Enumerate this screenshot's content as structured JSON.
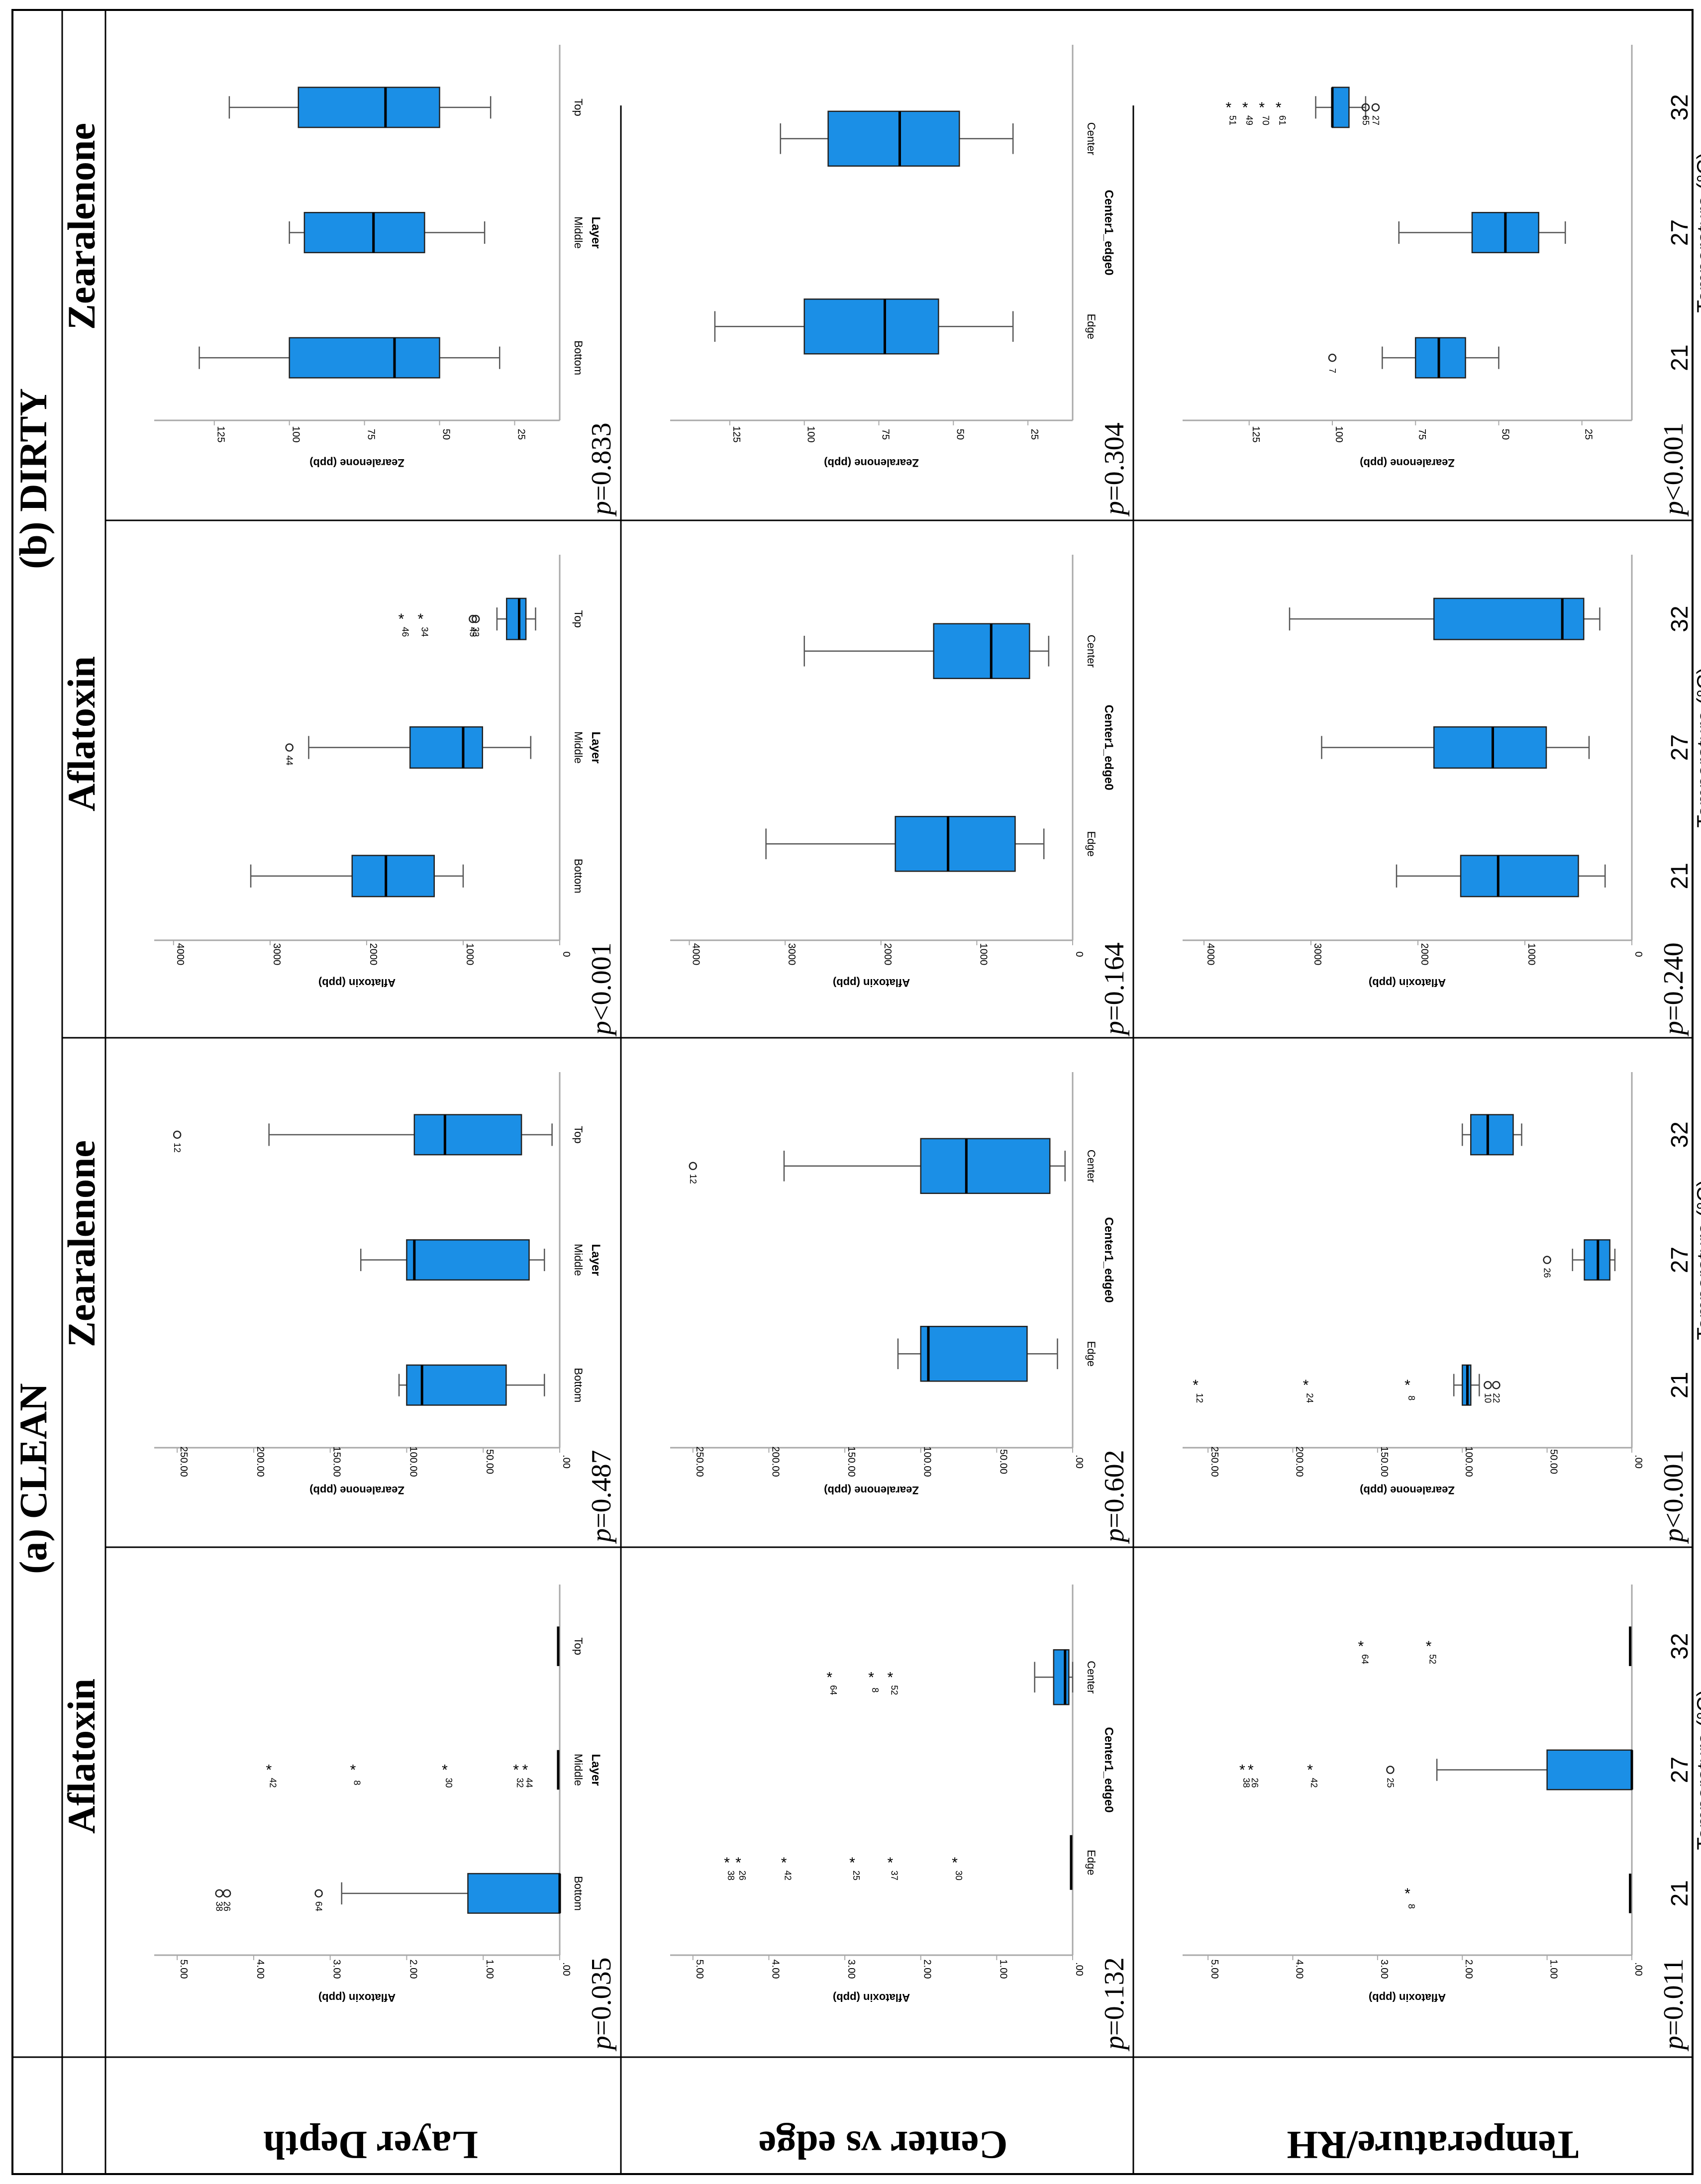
{
  "figure": {
    "group_a": "(a) CLEAN",
    "group_b": "(b) DIRTY",
    "col_headers": [
      "Aflatoxin",
      "Zearalenone",
      "Aflatoxin",
      "Zearalenone"
    ],
    "row_labels": [
      "Layer Depth",
      "Center vs edge",
      "Temperature/RH"
    ]
  },
  "colors": {
    "box_fill": "#1b8fe6",
    "line": "#000000",
    "whisker": "#555555",
    "frame": "#a9a9a9"
  },
  "chart_data": [
    {
      "type": "box",
      "id": "r0c0",
      "title": "Aflatoxin",
      "group": "CLEAN",
      "ylabel": "Aflatoxin (ppb)",
      "xlabel": "Layer",
      "categories": [
        "Bottom",
        "Middle",
        "Top"
      ],
      "ylim": [
        0,
        5.3
      ],
      "yticks": [
        0,
        1,
        2,
        3,
        4,
        5
      ],
      "tick_labels": [
        ".00",
        "1.00",
        "2.00",
        "3.00",
        "4.00",
        "5.00"
      ],
      "boxes": [
        {
          "min": 0,
          "q1": 0,
          "median": 0,
          "q3": 1.2,
          "max": 2.85
        },
        {
          "min": 0.02,
          "q1": 0.02,
          "median": 0.02,
          "q3": 0.02,
          "max": 0.02
        },
        {
          "min": 0.02,
          "q1": 0.02,
          "median": 0.02,
          "q3": 0.02,
          "max": 0.02
        }
      ],
      "outliers": [
        {
          "cat": 0,
          "v": 4.45,
          "sym": "o",
          "label": "38"
        },
        {
          "cat": 0,
          "v": 4.35,
          "sym": "o",
          "label": "26"
        },
        {
          "cat": 0,
          "v": 3.15,
          "sym": "o",
          "label": "64"
        },
        {
          "cat": 1,
          "v": 3.75,
          "sym": "*",
          "label": "42"
        },
        {
          "cat": 1,
          "v": 2.65,
          "sym": "*",
          "label": "8"
        },
        {
          "cat": 1,
          "v": 1.45,
          "sym": "*",
          "label": "30"
        },
        {
          "cat": 1,
          "v": 0.52,
          "sym": "*",
          "label": "32"
        },
        {
          "cat": 1,
          "v": 0.4,
          "sym": "*",
          "label": "44"
        }
      ],
      "p_value": "p=0.035"
    },
    {
      "type": "box",
      "id": "r0c1",
      "title": "Zearalenone",
      "group": "CLEAN",
      "ylabel": "Zearalenone (ppb)",
      "xlabel": "Layer",
      "categories": [
        "Bottom",
        "Middle",
        "Top"
      ],
      "ylim": [
        0,
        265
      ],
      "yticks": [
        0,
        50,
        100,
        150,
        200,
        250
      ],
      "tick_labels": [
        ".00",
        "50.00",
        "100.00",
        "150.00",
        "200.00",
        "250.00"
      ],
      "boxes": [
        {
          "min": 10,
          "q1": 35,
          "median": 90,
          "q3": 100,
          "max": 105
        },
        {
          "min": 10,
          "q1": 20,
          "median": 95,
          "q3": 100,
          "max": 130
        },
        {
          "min": 5,
          "q1": 25,
          "median": 75,
          "q3": 95,
          "max": 190
        }
      ],
      "outliers": [
        {
          "cat": 2,
          "v": 250,
          "sym": "o",
          "label": "12"
        }
      ],
      "p_value": "p=0.487"
    },
    {
      "type": "box",
      "id": "r0c2",
      "title": "Aflatoxin",
      "group": "DIRTY",
      "ylabel": "Aflatoxin (ppb)",
      "xlabel": "Layer",
      "categories": [
        "Bottom",
        "Middle",
        "Top"
      ],
      "ylim": [
        0,
        4200
      ],
      "yticks": [
        0,
        1000,
        2000,
        3000,
        4000
      ],
      "tick_labels": [
        "0",
        "1000",
        "2000",
        "3000",
        "4000"
      ],
      "boxes": [
        {
          "min": 1000,
          "q1": 1300,
          "median": 1800,
          "q3": 2150,
          "max": 3200
        },
        {
          "min": 300,
          "q1": 800,
          "median": 1000,
          "q3": 1550,
          "max": 2600
        },
        {
          "min": 250,
          "q1": 350,
          "median": 420,
          "q3": 550,
          "max": 650
        }
      ],
      "outliers": [
        {
          "cat": 1,
          "v": 2800,
          "sym": "o",
          "label": "44"
        },
        {
          "cat": 2,
          "v": 1600,
          "sym": "*",
          "label": "46"
        },
        {
          "cat": 2,
          "v": 1400,
          "sym": "*",
          "label": "34"
        },
        {
          "cat": 2,
          "v": 900,
          "sym": "o",
          "label": "45"
        },
        {
          "cat": 2,
          "v": 870,
          "sym": "o",
          "label": "33"
        }
      ],
      "p_value": "p<0.001"
    },
    {
      "type": "box",
      "id": "r0c3",
      "title": "Zearalenone",
      "group": "DIRTY",
      "ylabel": "Zearalenone (ppb)",
      "xlabel": "Layer",
      "categories": [
        "Bottom",
        "Middle",
        "Top"
      ],
      "ylim": [
        10,
        145
      ],
      "yticks": [
        25,
        50,
        75,
        100,
        125
      ],
      "tick_labels": [
        "25",
        "50",
        "75",
        "100",
        "125"
      ],
      "boxes": [
        {
          "min": 30,
          "q1": 50,
          "median": 65,
          "q3": 100,
          "max": 130
        },
        {
          "min": 35,
          "q1": 55,
          "median": 72,
          "q3": 95,
          "max": 100
        },
        {
          "min": 33,
          "q1": 50,
          "median": 68,
          "q3": 97,
          "max": 120
        }
      ],
      "outliers": [],
      "p_value": "p=0.833"
    },
    {
      "type": "box",
      "id": "r1c0",
      "title": "Aflatoxin",
      "group": "CLEAN",
      "ylabel": "Aflatoxin (ppb)",
      "xlabel": "Center1_edge0",
      "categories": [
        "Edge",
        "Center"
      ],
      "ylim": [
        0,
        5.3
      ],
      "yticks": [
        0,
        1,
        2,
        3,
        4,
        5
      ],
      "tick_labels": [
        ".00",
        "1.00",
        "2.00",
        "3.00",
        "4.00",
        "5.00"
      ],
      "boxes": [
        {
          "min": 0.02,
          "q1": 0.02,
          "median": 0.02,
          "q3": 0.02,
          "max": 0.02
        },
        {
          "min": 0,
          "q1": 0.05,
          "median": 0.1,
          "q3": 0.25,
          "max": 0.5
        }
      ],
      "outliers": [
        {
          "cat": 0,
          "v": 4.5,
          "sym": "*",
          "label": "38"
        },
        {
          "cat": 0,
          "v": 4.35,
          "sym": "*",
          "label": "26"
        },
        {
          "cat": 0,
          "v": 3.75,
          "sym": "*",
          "label": "42"
        },
        {
          "cat": 0,
          "v": 2.85,
          "sym": "*",
          "label": "25"
        },
        {
          "cat": 0,
          "v": 2.35,
          "sym": "*",
          "label": "37"
        },
        {
          "cat": 0,
          "v": 1.5,
          "sym": "*",
          "label": "30"
        },
        {
          "cat": 1,
          "v": 3.15,
          "sym": "*",
          "label": "64"
        },
        {
          "cat": 1,
          "v": 2.6,
          "sym": "*",
          "label": "8"
        },
        {
          "cat": 1,
          "v": 2.35,
          "sym": "*",
          "label": "52"
        }
      ],
      "p_value": "p=0.132"
    },
    {
      "type": "box",
      "id": "r1c1",
      "title": "Zearalenone",
      "group": "CLEAN",
      "ylabel": "Zearalenone (ppb)",
      "xlabel": "Center1_edge0",
      "categories": [
        "Edge",
        "Center"
      ],
      "ylim": [
        0,
        265
      ],
      "yticks": [
        0,
        50,
        100,
        150,
        200,
        250
      ],
      "tick_labels": [
        ".00",
        "50.00",
        "100.00",
        "150.00",
        "200.00",
        "250.00"
      ],
      "boxes": [
        {
          "min": 10,
          "q1": 30,
          "median": 95,
          "q3": 100,
          "max": 115
        },
        {
          "min": 5,
          "q1": 15,
          "median": 70,
          "q3": 100,
          "max": 190
        }
      ],
      "outliers": [
        {
          "cat": 1,
          "v": 250,
          "sym": "o",
          "label": "12"
        }
      ],
      "p_value": "p=0.602"
    },
    {
      "type": "box",
      "id": "r1c2",
      "title": "Aflatoxin",
      "group": "DIRTY",
      "ylabel": "Aflatoxin (ppb)",
      "xlabel": "Center1_edge0",
      "categories": [
        "Edge",
        "Center"
      ],
      "ylim": [
        0,
        4200
      ],
      "yticks": [
        0,
        1000,
        2000,
        3000,
        4000
      ],
      "tick_labels": [
        "0",
        "1000",
        "2000",
        "3000",
        "4000"
      ],
      "boxes": [
        {
          "min": 300,
          "q1": 600,
          "median": 1300,
          "q3": 1850,
          "max": 3200
        },
        {
          "min": 250,
          "q1": 450,
          "median": 850,
          "q3": 1450,
          "max": 2800
        }
      ],
      "outliers": [],
      "p_value": "p=0.164"
    },
    {
      "type": "box",
      "id": "r1c3",
      "title": "Zearalenone",
      "group": "DIRTY",
      "ylabel": "Zearalenone (ppb)",
      "xlabel": "Center1_edge0",
      "categories": [
        "Edge",
        "Center"
      ],
      "ylim": [
        10,
        145
      ],
      "yticks": [
        25,
        50,
        75,
        100,
        125
      ],
      "tick_labels": [
        "25",
        "50",
        "75",
        "100",
        "125"
      ],
      "boxes": [
        {
          "min": 30,
          "q1": 55,
          "median": 73,
          "q3": 100,
          "max": 130
        },
        {
          "min": 30,
          "q1": 48,
          "median": 68,
          "q3": 92,
          "max": 108
        }
      ],
      "outliers": [],
      "p_value": "p=0.304"
    },
    {
      "type": "box",
      "id": "r2c0",
      "title": "Aflatoxin",
      "group": "CLEAN",
      "ylabel": "Aflatoxin (ppb)",
      "xlabel": "Temperature (°C)",
      "categories": [
        "21",
        "27",
        "32"
      ],
      "ylim": [
        0,
        5.3
      ],
      "yticks": [
        0,
        1,
        2,
        3,
        4,
        5
      ],
      "tick_labels": [
        ".00",
        "1.00",
        "2.00",
        "3.00",
        "4.00",
        "5.00"
      ],
      "boxes": [
        {
          "min": 0.02,
          "q1": 0.02,
          "median": 0.02,
          "q3": 0.02,
          "max": 0.02
        },
        {
          "min": 0,
          "q1": 0,
          "median": 0,
          "q3": 1,
          "max": 2.3
        },
        {
          "min": 0.02,
          "q1": 0.02,
          "median": 0.02,
          "q3": 0.02,
          "max": 0.02
        }
      ],
      "outliers": [
        {
          "cat": 0,
          "v": 2.6,
          "sym": "*",
          "label": "8"
        },
        {
          "cat": 1,
          "v": 4.55,
          "sym": "*",
          "label": "38"
        },
        {
          "cat": 1,
          "v": 4.45,
          "sym": "*",
          "label": "26"
        },
        {
          "cat": 1,
          "v": 3.75,
          "sym": "*",
          "label": "42"
        },
        {
          "cat": 1,
          "v": 2.85,
          "sym": "o",
          "label": "25"
        },
        {
          "cat": 2,
          "v": 3.15,
          "sym": "*",
          "label": "64"
        },
        {
          "cat": 2,
          "v": 2.35,
          "sym": "*",
          "label": "52"
        }
      ],
      "p_value": "p=0.011"
    },
    {
      "type": "box",
      "id": "r2c1",
      "title": "Zearalenone",
      "group": "CLEAN",
      "ylabel": "Zearalenone (ppb)",
      "xlabel": "Temperature (°C)",
      "categories": [
        "21",
        "27",
        "32"
      ],
      "ylim": [
        0,
        265
      ],
      "yticks": [
        0,
        50,
        100,
        150,
        200,
        250
      ],
      "tick_labels": [
        ".00",
        "50.00",
        "100.00",
        "150.00",
        "200.00",
        "250.00"
      ],
      "boxes": [
        {
          "min": 90,
          "q1": 95,
          "median": 97,
          "q3": 100,
          "max": 105
        },
        {
          "min": 10,
          "q1": 13,
          "median": 20,
          "q3": 28,
          "max": 35
        },
        {
          "min": 65,
          "q1": 70,
          "median": 85,
          "q3": 95,
          "max": 100
        }
      ],
      "outliers": [
        {
          "cat": 0,
          "v": 255,
          "sym": "*",
          "label": "12"
        },
        {
          "cat": 0,
          "v": 190,
          "sym": "*",
          "label": "24"
        },
        {
          "cat": 0,
          "v": 130,
          "sym": "*",
          "label": "8"
        },
        {
          "cat": 0,
          "v": 85,
          "sym": "o",
          "label": "10"
        },
        {
          "cat": 0,
          "v": 80,
          "sym": "o",
          "label": "22"
        },
        {
          "cat": 1,
          "v": 50,
          "sym": "o",
          "label": "26"
        }
      ],
      "p_value": "p<0.001"
    },
    {
      "type": "box",
      "id": "r2c2",
      "title": "Aflatoxin",
      "group": "DIRTY",
      "ylabel": "Aflatoxin (ppb)",
      "xlabel": "Temperature (°C)",
      "categories": [
        "21",
        "27",
        "32"
      ],
      "ylim": [
        0,
        4200
      ],
      "yticks": [
        0,
        1000,
        2000,
        3000,
        4000
      ],
      "tick_labels": [
        "0",
        "1000",
        "2000",
        "3000",
        "4000"
      ],
      "boxes": [
        {
          "min": 250,
          "q1": 500,
          "median": 1250,
          "q3": 1600,
          "max": 2200
        },
        {
          "min": 400,
          "q1": 800,
          "median": 1300,
          "q3": 1850,
          "max": 2900
        },
        {
          "min": 300,
          "q1": 450,
          "median": 650,
          "q3": 1850,
          "max": 3200
        }
      ],
      "outliers": [],
      "p_value": "p=0.240"
    },
    {
      "type": "box",
      "id": "r2c3",
      "title": "Zearalenone",
      "group": "DIRTY",
      "ylabel": "Zearalenone (ppb)",
      "xlabel": "Temperature (°C)",
      "categories": [
        "21",
        "27",
        "32"
      ],
      "ylim": [
        10,
        145
      ],
      "yticks": [
        25,
        50,
        75,
        100,
        125
      ],
      "tick_labels": [
        "25",
        "50",
        "75",
        "100",
        "125"
      ],
      "boxes": [
        {
          "min": 50,
          "q1": 60,
          "median": 68,
          "q3": 75,
          "max": 85
        },
        {
          "min": 30,
          "q1": 38,
          "median": 48,
          "q3": 58,
          "max": 80
        },
        {
          "min": 90,
          "q1": 95,
          "median": 100,
          "q3": 100,
          "max": 105
        }
      ],
      "outliers": [
        {
          "cat": 0,
          "v": 100,
          "sym": "o",
          "label": "7"
        },
        {
          "cat": 2,
          "v": 130,
          "sym": "*",
          "label": "51"
        },
        {
          "cat": 2,
          "v": 125,
          "sym": "*",
          "label": "49"
        },
        {
          "cat": 2,
          "v": 120,
          "sym": "*",
          "label": "70"
        },
        {
          "cat": 2,
          "v": 115,
          "sym": "*",
          "label": "61"
        },
        {
          "cat": 2,
          "v": 90,
          "sym": "o",
          "label": "65"
        },
        {
          "cat": 2,
          "v": 87,
          "sym": "o",
          "label": "27"
        }
      ],
      "p_value": "p<0.001"
    }
  ]
}
